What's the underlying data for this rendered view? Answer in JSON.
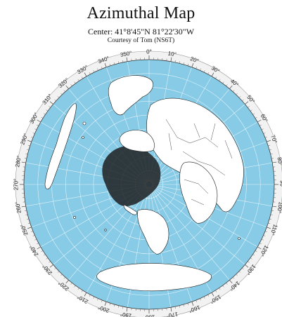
{
  "map": {
    "title": "Azimuthal Map",
    "center": "Center: 41°8'45\"N 81°22'30\"W",
    "credit": "Courtesy of Tom (NS6T)",
    "colors": {
      "ocean": "#87cbe6",
      "land": "#ffffff",
      "graticule": "#ffffff",
      "border": "#1a1a1a",
      "ring": "#f2f2f2"
    },
    "azimuth_labels": [
      "0°",
      "10°",
      "20°",
      "30°",
      "40°",
      "50°",
      "60°",
      "70°",
      "80°",
      "90°",
      "100°",
      "110°",
      "120°",
      "130°",
      "140°",
      "150°",
      "160°",
      "170°",
      "180°",
      "190°",
      "200°",
      "210°",
      "220°",
      "230°",
      "240°",
      "250°",
      "260°",
      "270°",
      "280°",
      "290°",
      "300°",
      "310°",
      "320°",
      "330°",
      "340°",
      "350°"
    ]
  }
}
